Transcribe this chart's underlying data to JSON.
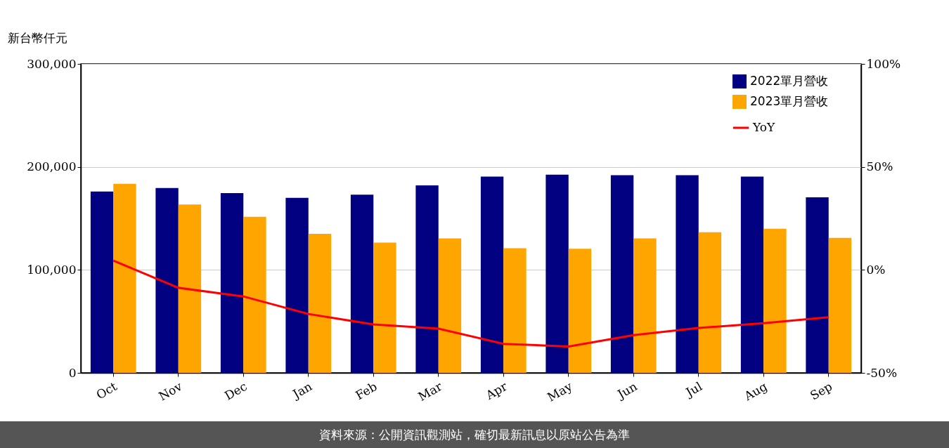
{
  "chart_data": {
    "type": "bar",
    "ylabel": "新台幣仟元",
    "categories": [
      "Oct",
      "Nov",
      "Dec",
      "Jan",
      "Feb",
      "Mar",
      "Apr",
      "May",
      "Jun",
      "Jul",
      "Aug",
      "Sep"
    ],
    "series": [
      {
        "name": "2022單月營收",
        "color": "#000080",
        "values": [
          176000,
          179500,
          174500,
          170000,
          173000,
          182000,
          190500,
          192500,
          192000,
          192000,
          190500,
          170500
        ]
      },
      {
        "name": "2023單月營收",
        "color": "#ffa500",
        "values": [
          183500,
          163500,
          151500,
          135000,
          126500,
          130500,
          121000,
          120500,
          130500,
          136500,
          140000,
          131000
        ]
      },
      {
        "name": "YoY",
        "type": "line",
        "axis": "y2",
        "color": "#ff0000",
        "values": [
          4.5,
          -8.7,
          -12.9,
          -21.4,
          -26.5,
          -28.5,
          -35.9,
          -37.2,
          -31.7,
          -28.2,
          -25.9,
          -23.0
        ]
      }
    ],
    "ylim": [
      0,
      300000
    ],
    "yticks": [
      0,
      {
        "value": 100000,
        "label": "100,000"
      },
      {
        "value": 200000,
        "label": "200,000"
      },
      {
        "value": 300000,
        "label": "300,000"
      }
    ],
    "y2lim": [
      -50,
      100
    ],
    "y2ticks": [
      {
        "value": -50,
        "label": "-50%"
      },
      {
        "value": 0,
        "label": "0%"
      },
      {
        "value": 50,
        "label": "50%"
      },
      {
        "value": 100,
        "label": "100%"
      }
    ],
    "grid": "y",
    "legend": "top right",
    "annotations": [
      "資料來源：公開資訊觀測站，確切最新訊息以原站公告為準"
    ]
  }
}
